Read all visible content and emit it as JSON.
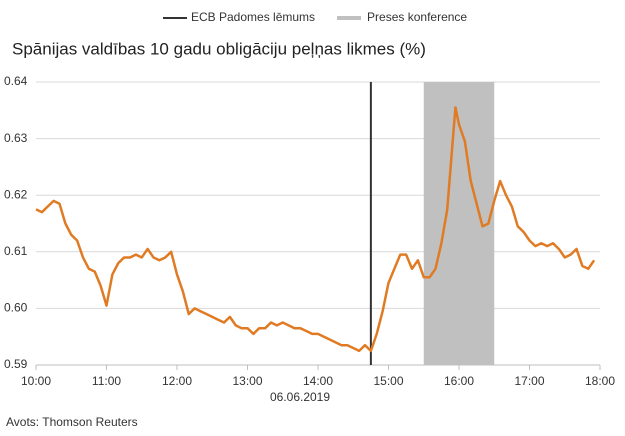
{
  "chart_data": {
    "type": "line",
    "title": "Spānijas valdības 10 gadu obligāciju peļņas likmes (%)",
    "xlabel": "06.06.2019",
    "source": "Avots: Thomson Reuters",
    "color": "#e07b24",
    "x": [
      600,
      605,
      610,
      615,
      620,
      625,
      630,
      635,
      640,
      645,
      650,
      655,
      660,
      665,
      670,
      675,
      680,
      685,
      690,
      695,
      700,
      705,
      710,
      715,
      720,
      725,
      730,
      735,
      740,
      745,
      750,
      755,
      760,
      765,
      770,
      775,
      780,
      785,
      790,
      795,
      800,
      805,
      810,
      815,
      820,
      825,
      830,
      835,
      840,
      845,
      850,
      855,
      860,
      865,
      870,
      875,
      880,
      885,
      890,
      895,
      900,
      905,
      910,
      915,
      920,
      925,
      930,
      935,
      940,
      945,
      950,
      955,
      957,
      960,
      965,
      970,
      975,
      980,
      985,
      990,
      995,
      1000,
      1005,
      1010,
      1015,
      1020,
      1025,
      1030,
      1035,
      1040,
      1045,
      1050,
      1055,
      1060,
      1065,
      1070,
      1075
    ],
    "values": [
      0.6175,
      0.617,
      0.618,
      0.619,
      0.6185,
      0.615,
      0.613,
      0.612,
      0.609,
      0.607,
      0.6065,
      0.604,
      0.6005,
      0.606,
      0.608,
      0.609,
      0.609,
      0.6095,
      0.609,
      0.6105,
      0.609,
      0.6085,
      0.609,
      0.61,
      0.606,
      0.603,
      0.599,
      0.6,
      0.5995,
      0.599,
      0.5985,
      0.598,
      0.5975,
      0.5985,
      0.597,
      0.5965,
      0.5965,
      0.5955,
      0.5965,
      0.5965,
      0.5975,
      0.597,
      0.5975,
      0.597,
      0.5965,
      0.5965,
      0.596,
      0.5955,
      0.5955,
      0.595,
      0.5945,
      0.594,
      0.5935,
      0.5935,
      0.593,
      0.5925,
      0.5935,
      0.5925,
      0.5955,
      0.5995,
      0.6045,
      0.607,
      0.6095,
      0.6095,
      0.607,
      0.6085,
      0.6055,
      0.6055,
      0.607,
      0.6115,
      0.6175,
      0.6305,
      0.6355,
      0.6325,
      0.6295,
      0.6225,
      0.6185,
      0.6145,
      0.615,
      0.619,
      0.6225,
      0.62,
      0.618,
      0.6145,
      0.6135,
      0.612,
      0.611,
      0.6115,
      0.611,
      0.6115,
      0.6105,
      0.609,
      0.6095,
      0.6105,
      0.6075,
      0.607,
      0.6085
    ],
    "xlim": [
      600,
      1080
    ],
    "xticks": [
      {
        "value": 600,
        "label": "10:00"
      },
      {
        "value": 660,
        "label": "11:00"
      },
      {
        "value": 720,
        "label": "12:00"
      },
      {
        "value": 780,
        "label": "13:00"
      },
      {
        "value": 840,
        "label": "14:00"
      },
      {
        "value": 900,
        "label": "15:00"
      },
      {
        "value": 960,
        "label": "16:00"
      },
      {
        "value": 1020,
        "label": "17:00"
      },
      {
        "value": 1080,
        "label": "18:00"
      }
    ],
    "ylim": [
      0.59,
      0.64
    ],
    "yticks": [
      0.59,
      {
        "value": 0.6,
        "label": "0.60"
      },
      0.61,
      0.62,
      0.63,
      0.64
    ],
    "grid": true,
    "legend": "top",
    "events": [
      {
        "name": "ECB Padomes lēmums",
        "x": 885,
        "color": "#333333"
      }
    ],
    "bands": [
      {
        "name": "Preses konference",
        "x": [
          930,
          990
        ],
        "color": "#c0c0c0"
      }
    ]
  }
}
